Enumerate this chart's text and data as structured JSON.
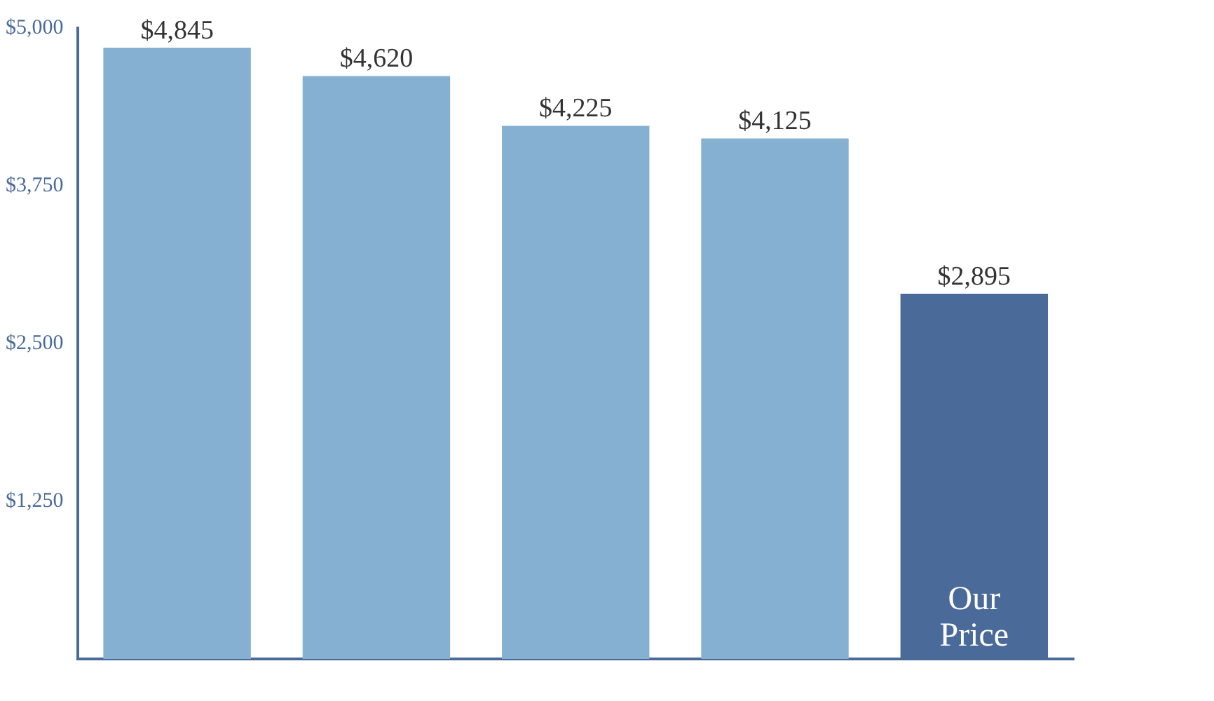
{
  "chart_data": {
    "type": "bar",
    "categories": [
      null,
      null,
      null,
      null,
      "Our Price"
    ],
    "values": [
      4845,
      4620,
      4225,
      4125,
      2895
    ],
    "colors": [
      "#85b0d2",
      "#85b0d2",
      "#85b0d2",
      "#85b0d2",
      "#4a6b99"
    ],
    "ylim": [
      0,
      5000
    ],
    "yticks": [
      {
        "value": 1250,
        "label": "$1,250"
      },
      {
        "value": 2500,
        "label": "$2,500"
      },
      {
        "value": 3750,
        "label": "$3,750"
      },
      {
        "value": 5000,
        "label": "$5,000"
      }
    ],
    "value_labels": [
      "$4,845",
      "$4,620",
      "$4,225",
      "$4,125",
      "$2,895"
    ],
    "grid": false,
    "legend": false
  }
}
